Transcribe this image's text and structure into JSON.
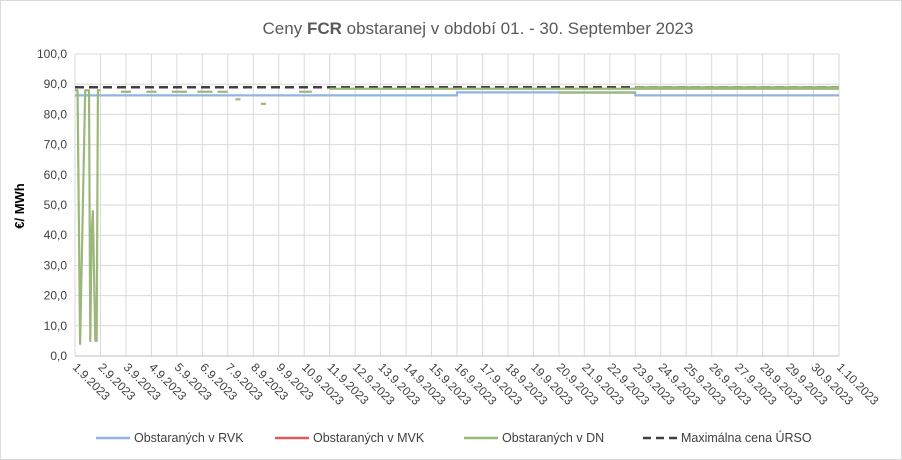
{
  "chart_data": {
    "type": "line",
    "title": {
      "prefix": "Ceny ",
      "bold": "FCR",
      "suffix": " obstaranej v období 01. - 30. September 2023"
    },
    "ylabel": "€/ MWh",
    "xlabel": "",
    "ylim": [
      0,
      100
    ],
    "y_ticks": [
      "0,0",
      "10,0",
      "20,0",
      "30,0",
      "40,0",
      "50,0",
      "60,0",
      "70,0",
      "80,0",
      "90,0",
      "100,0"
    ],
    "x_ticks": [
      "1.9.2023",
      "2.9.2023",
      "3.9.2023",
      "4.9.2023",
      "5.9.2023",
      "6.9.2023",
      "7.9.2023",
      "8.9.2023",
      "9.9.2023",
      "10.9.2023",
      "11.9.2023",
      "12.9.2023",
      "13.9.2023",
      "14.9.2023",
      "15.9.2023",
      "16.9.2023",
      "17.9.2023",
      "18.9.2023",
      "19.9.2023",
      "20.9.2023",
      "21.9.2023",
      "22.9.2023",
      "23.9.2023",
      "24.9.2023",
      "25.9.2023",
      "26.9.2023",
      "27.9.2023",
      "28.9.2023",
      "29.9.2023",
      "30.9.2023",
      "1.10.2023"
    ],
    "grid": true,
    "legend_position": "bottom",
    "series": [
      {
        "name": "Obstaraných v RVK",
        "color": "#8FB4E3",
        "style": "solid",
        "x": [
          0,
          15,
          15,
          22,
          22,
          30
        ],
        "y": [
          86.3,
          86.3,
          87.3,
          87.3,
          86.3,
          86.3
        ]
      },
      {
        "name": "Obstaraných v MVK",
        "color": "#E05A5A",
        "style": "solid",
        "x": [],
        "y": []
      },
      {
        "name": "Obstaraných v DN",
        "color": "#9BB87A",
        "style": "solid",
        "segments": [
          {
            "x": [
              0,
              0.1,
              0.2,
              0.4,
              0.55,
              0.6,
              0.65,
              0.7,
              0.8,
              0.85,
              0.9,
              1.0
            ],
            "y": [
              88.0,
              88.0,
              4.0,
              88.0,
              88.0,
              5.0,
              40.0,
              48.0,
              5.0,
              5.0,
              88.0,
              88.0
            ]
          },
          {
            "x": [
              1.8,
              2.2
            ],
            "y": [
              87.5,
              87.5
            ]
          },
          {
            "x": [
              2.8,
              3.2
            ],
            "y": [
              87.5,
              87.5
            ]
          },
          {
            "x": [
              3.8,
              4.4
            ],
            "y": [
              87.5,
              87.5
            ]
          },
          {
            "x": [
              4.8,
              5.4
            ],
            "y": [
              87.5,
              87.5
            ]
          },
          {
            "x": [
              5.6,
              6.0
            ],
            "y": [
              87.5,
              87.5
            ]
          },
          {
            "x": [
              6.3,
              6.5
            ],
            "y": [
              85.0,
              85.0
            ]
          },
          {
            "x": [
              7.3,
              7.5
            ],
            "y": [
              83.5,
              83.5
            ]
          },
          {
            "x": [
              8.8,
              9.3
            ],
            "y": [
              87.5,
              87.5
            ]
          },
          {
            "x": [
              10.0,
              30.0
            ],
            "y": [
              88.5,
              88.5
            ]
          },
          {
            "x": [
              19.0,
              22.0
            ],
            "y": [
              87.2,
              87.2
            ]
          },
          {
            "x": [
              22.0,
              30.0
            ],
            "y": [
              89.0,
              89.0
            ]
          }
        ]
      },
      {
        "name": "Maximálna cena ÚRSO",
        "color": "#404040",
        "style": "dashed",
        "x": [
          0,
          30
        ],
        "y": [
          89,
          89
        ]
      }
    ]
  }
}
